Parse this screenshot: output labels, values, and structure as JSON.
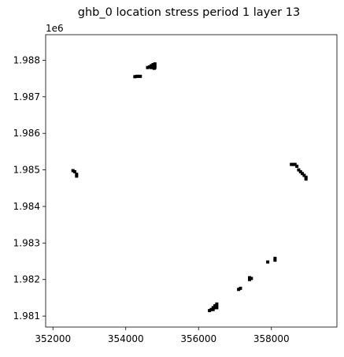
{
  "chart_data": {
    "type": "scatter",
    "title": "ghb_0 location stress period 1 layer 13",
    "xlabel": "",
    "ylabel": "",
    "y_offset_label": "1e6",
    "xlim": [
      351800,
      359800
    ],
    "ylim": [
      1980700,
      1988700
    ],
    "grid": false,
    "legend": "none",
    "marker": "square",
    "marker_color": "#000000",
    "xticks": [
      352000,
      354000,
      356000,
      358000
    ],
    "xtick_labels": [
      "352000",
      "354000",
      "356000",
      "358000"
    ],
    "yticks": [
      1981000,
      1982000,
      1983000,
      1984000,
      1985000,
      1986000,
      1987000,
      1988000
    ],
    "ytick_labels": [
      "1.981",
      "1.982",
      "1.983",
      "1.984",
      "1.985",
      "1.986",
      "1.987",
      "1.988"
    ],
    "series": [
      {
        "values": [
          {
            "x": 354250,
            "y": 1987550
          },
          {
            "x": 354300,
            "y": 1987560
          },
          {
            "x": 354350,
            "y": 1987560
          },
          {
            "x": 354400,
            "y": 1987560
          },
          {
            "x": 354600,
            "y": 1987800
          },
          {
            "x": 354650,
            "y": 1987820
          },
          {
            "x": 354700,
            "y": 1987850
          },
          {
            "x": 354750,
            "y": 1987880
          },
          {
            "x": 354800,
            "y": 1987900
          },
          {
            "x": 354700,
            "y": 1987800
          },
          {
            "x": 354750,
            "y": 1987830
          },
          {
            "x": 354800,
            "y": 1987850
          },
          {
            "x": 354780,
            "y": 1987780
          },
          {
            "x": 354800,
            "y": 1987800
          },
          {
            "x": 352550,
            "y": 1984980
          },
          {
            "x": 352600,
            "y": 1984950
          },
          {
            "x": 352650,
            "y": 1984880
          },
          {
            "x": 352650,
            "y": 1984830
          },
          {
            "x": 358550,
            "y": 1985150
          },
          {
            "x": 358600,
            "y": 1985150
          },
          {
            "x": 358650,
            "y": 1985150
          },
          {
            "x": 358700,
            "y": 1985100
          },
          {
            "x": 358750,
            "y": 1985000
          },
          {
            "x": 358800,
            "y": 1984950
          },
          {
            "x": 358850,
            "y": 1984900
          },
          {
            "x": 358900,
            "y": 1984850
          },
          {
            "x": 358950,
            "y": 1984800
          },
          {
            "x": 358950,
            "y": 1984750
          },
          {
            "x": 357900,
            "y": 1982480
          },
          {
            "x": 358100,
            "y": 1982530
          },
          {
            "x": 358100,
            "y": 1982580
          },
          {
            "x": 357400,
            "y": 1982000
          },
          {
            "x": 357400,
            "y": 1982050
          },
          {
            "x": 357450,
            "y": 1982030
          },
          {
            "x": 357100,
            "y": 1981730
          },
          {
            "x": 357150,
            "y": 1981760
          },
          {
            "x": 356300,
            "y": 1981150
          },
          {
            "x": 356350,
            "y": 1981180
          },
          {
            "x": 356400,
            "y": 1981230
          },
          {
            "x": 356450,
            "y": 1981280
          },
          {
            "x": 356500,
            "y": 1981330
          },
          {
            "x": 356400,
            "y": 1981180
          },
          {
            "x": 356450,
            "y": 1981230
          },
          {
            "x": 356500,
            "y": 1981280
          },
          {
            "x": 356500,
            "y": 1981230
          }
        ]
      }
    ]
  }
}
